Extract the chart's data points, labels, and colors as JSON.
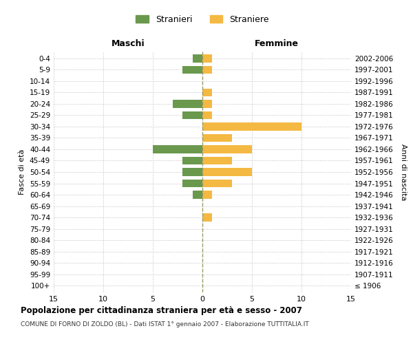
{
  "age_groups": [
    "100+",
    "95-99",
    "90-94",
    "85-89",
    "80-84",
    "75-79",
    "70-74",
    "65-69",
    "60-64",
    "55-59",
    "50-54",
    "45-49",
    "40-44",
    "35-39",
    "30-34",
    "25-29",
    "20-24",
    "15-19",
    "10-14",
    "5-9",
    "0-4"
  ],
  "birth_years": [
    "≤ 1906",
    "1907-1911",
    "1912-1916",
    "1917-1921",
    "1922-1926",
    "1927-1931",
    "1932-1936",
    "1937-1941",
    "1942-1946",
    "1947-1951",
    "1952-1956",
    "1957-1961",
    "1962-1966",
    "1967-1971",
    "1972-1976",
    "1977-1981",
    "1982-1986",
    "1987-1991",
    "1992-1996",
    "1997-2001",
    "2002-2006"
  ],
  "maschi": [
    0,
    0,
    0,
    0,
    0,
    0,
    0,
    0,
    1,
    2,
    2,
    2,
    5,
    0,
    0,
    2,
    3,
    0,
    0,
    2,
    1
  ],
  "femmine": [
    0,
    0,
    0,
    0,
    0,
    0,
    1,
    0,
    1,
    3,
    5,
    3,
    5,
    3,
    10,
    1,
    1,
    1,
    0,
    1,
    1
  ],
  "maschi_color": "#6a994e",
  "femmine_color": "#f4b942",
  "background_color": "#ffffff",
  "grid_color": "#cccccc",
  "title": "Popolazione per cittadinanza straniera per età e sesso - 2007",
  "subtitle": "COMUNE DI FORNO DI ZOLDO (BL) - Dati ISTAT 1° gennaio 2007 - Elaborazione TUTTITALIA.IT",
  "xlabel_left": "Maschi",
  "xlabel_right": "Femmine",
  "ylabel_left": "Fasce di età",
  "ylabel_right": "Anni di nascita",
  "legend_maschi": "Stranieri",
  "legend_femmine": "Straniere",
  "xlim": 15
}
